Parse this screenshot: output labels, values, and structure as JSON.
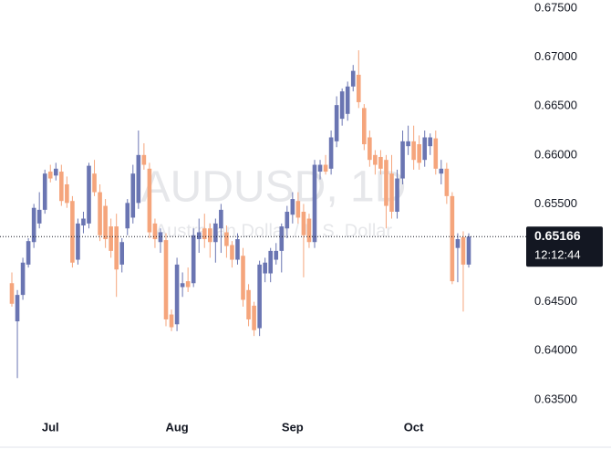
{
  "chart_data": {
    "type": "candlestick",
    "title": "AUDUSD, 1D",
    "subtitle": "Australian Dollar / U.S. Dollar",
    "up_color": "#6a75b2",
    "down_color": "#f5a57c",
    "ylim": [
      0.6334,
      0.67584
    ],
    "yticks": [
      {
        "value": 0.635,
        "label": "0.63500"
      },
      {
        "value": 0.64,
        "label": "0.64000"
      },
      {
        "value": 0.645,
        "label": "0.64500"
      },
      {
        "value": 0.65,
        "label": "0.65000"
      },
      {
        "value": 0.655,
        "label": "0.65500"
      },
      {
        "value": 0.66,
        "label": "0.66000"
      },
      {
        "value": 0.665,
        "label": "0.66500"
      },
      {
        "value": 0.67,
        "label": "0.67000"
      },
      {
        "value": 0.675,
        "label": "0.67500"
      }
    ],
    "xticks": [
      {
        "value": 7,
        "label": "Jul"
      },
      {
        "value": 30,
        "label": "Aug"
      },
      {
        "value": 51,
        "label": "Sep"
      },
      {
        "value": 73,
        "label": "Oct"
      }
    ],
    "last_price": {
      "value": 0.65166,
      "label": "0.65166"
    },
    "countdown": "12:12:44",
    "ohlc": [
      [
        0.6469,
        0.648,
        0.6445,
        0.6448
      ],
      [
        0.643,
        0.6462,
        0.6372,
        0.6457
      ],
      [
        0.6457,
        0.6495,
        0.6452,
        0.649
      ],
      [
        0.6488,
        0.6515,
        0.6485,
        0.6512
      ],
      [
        0.6511,
        0.655,
        0.6505,
        0.6546
      ],
      [
        0.653,
        0.6562,
        0.6525,
        0.6544
      ],
      [
        0.6544,
        0.6585,
        0.654,
        0.6581
      ],
      [
        0.6583,
        0.659,
        0.6572,
        0.6576
      ],
      [
        0.6579,
        0.6592,
        0.6574,
        0.6586
      ],
      [
        0.6583,
        0.659,
        0.6548,
        0.6553
      ],
      [
        0.657,
        0.6578,
        0.6546,
        0.6551
      ],
      [
        0.6553,
        0.6558,
        0.6485,
        0.649
      ],
      [
        0.6493,
        0.6535,
        0.6488,
        0.653
      ],
      [
        0.6528,
        0.6542,
        0.652,
        0.6535
      ],
      [
        0.653,
        0.6592,
        0.6525,
        0.6589
      ],
      [
        0.6581,
        0.6595,
        0.6558,
        0.6562
      ],
      [
        0.6562,
        0.657,
        0.6512,
        0.6518
      ],
      [
        0.6548,
        0.6555,
        0.6505,
        0.6514
      ],
      [
        0.6527,
        0.6535,
        0.6495,
        0.6502
      ],
      [
        0.6527,
        0.654,
        0.6455,
        0.6483
      ],
      [
        0.6488,
        0.6515,
        0.648,
        0.6511
      ],
      [
        0.6525,
        0.6555,
        0.6518,
        0.6551
      ],
      [
        0.6536,
        0.659,
        0.653,
        0.6581
      ],
      [
        0.6551,
        0.6625,
        0.6545,
        0.66
      ],
      [
        0.66,
        0.6612,
        0.6585,
        0.659
      ],
      [
        0.6586,
        0.6592,
        0.6515,
        0.6521
      ],
      [
        0.653,
        0.6535,
        0.6505,
        0.6514
      ],
      [
        0.6511,
        0.6525,
        0.65,
        0.6521
      ],
      [
        0.6513,
        0.652,
        0.6425,
        0.6432
      ],
      [
        0.6437,
        0.6442,
        0.642,
        0.6424
      ],
      [
        0.6427,
        0.6495,
        0.642,
        0.6488
      ],
      [
        0.6465,
        0.648,
        0.6455,
        0.6469
      ],
      [
        0.6471,
        0.6485,
        0.646,
        0.6465
      ],
      [
        0.6469,
        0.6525,
        0.6465,
        0.6518
      ],
      [
        0.6514,
        0.6535,
        0.65,
        0.6521
      ],
      [
        0.6525,
        0.654,
        0.6505,
        0.6514
      ],
      [
        0.6525,
        0.653,
        0.6495,
        0.6511
      ],
      [
        0.6511,
        0.6535,
        0.649,
        0.653
      ],
      [
        0.6525,
        0.655,
        0.65,
        0.6544
      ],
      [
        0.6521,
        0.6528,
        0.6495,
        0.6507
      ],
      [
        0.6508,
        0.6512,
        0.6485,
        0.6493
      ],
      [
        0.6493,
        0.652,
        0.6488,
        0.6514
      ],
      [
        0.6497,
        0.6505,
        0.6445,
        0.6452
      ],
      [
        0.6462,
        0.6468,
        0.6425,
        0.6432
      ],
      [
        0.6446,
        0.645,
        0.6415,
        0.6421
      ],
      [
        0.6423,
        0.6492,
        0.6415,
        0.6488
      ],
      [
        0.6479,
        0.6495,
        0.647,
        0.649
      ],
      [
        0.6479,
        0.6505,
        0.647,
        0.6502
      ],
      [
        0.6493,
        0.651,
        0.6488,
        0.6502
      ],
      [
        0.6502,
        0.653,
        0.648,
        0.6527
      ],
      [
        0.6525,
        0.6548,
        0.6515,
        0.6542
      ],
      [
        0.6539,
        0.6562,
        0.653,
        0.6555
      ],
      [
        0.6553,
        0.6562,
        0.653,
        0.6536
      ],
      [
        0.6542,
        0.655,
        0.6475,
        0.6518
      ],
      [
        0.6535,
        0.654,
        0.6505,
        0.6511
      ],
      [
        0.6511,
        0.6595,
        0.6505,
        0.659
      ],
      [
        0.6583,
        0.6595,
        0.6575,
        0.659
      ],
      [
        0.659,
        0.66,
        0.658,
        0.6583
      ],
      [
        0.6586,
        0.6625,
        0.658,
        0.6618
      ],
      [
        0.6614,
        0.666,
        0.6608,
        0.6651
      ],
      [
        0.6637,
        0.6668,
        0.663,
        0.6665
      ],
      [
        0.6642,
        0.6675,
        0.6635,
        0.667
      ],
      [
        0.667,
        0.6692,
        0.6665,
        0.6686
      ],
      [
        0.6682,
        0.6707,
        0.6648,
        0.6654
      ],
      [
        0.6648,
        0.6652,
        0.6605,
        0.6611
      ],
      [
        0.6618,
        0.6625,
        0.6588,
        0.6595
      ],
      [
        0.66,
        0.6605,
        0.658,
        0.659
      ],
      [
        0.6598,
        0.6605,
        0.658,
        0.6586
      ],
      [
        0.6595,
        0.66,
        0.6525,
        0.6548
      ],
      [
        0.6581,
        0.66,
        0.6535,
        0.6542
      ],
      [
        0.6542,
        0.6585,
        0.6535,
        0.6576
      ],
      [
        0.6576,
        0.6625,
        0.657,
        0.6614
      ],
      [
        0.6609,
        0.663,
        0.66,
        0.6614
      ],
      [
        0.6614,
        0.663,
        0.6585,
        0.6595
      ],
      [
        0.6611,
        0.662,
        0.6585,
        0.6592
      ],
      [
        0.6595,
        0.6625,
        0.6588,
        0.6618
      ],
      [
        0.6609,
        0.6622,
        0.66,
        0.6618
      ],
      [
        0.6617,
        0.6625,
        0.658,
        0.6586
      ],
      [
        0.6581,
        0.6595,
        0.657,
        0.6586
      ],
      [
        0.6586,
        0.6592,
        0.655,
        0.6558
      ],
      [
        0.6558,
        0.6562,
        0.6468,
        0.6471
      ],
      [
        0.6505,
        0.652,
        0.647,
        0.6514
      ],
      [
        0.6516,
        0.6522,
        0.644,
        0.6488
      ],
      [
        0.6488,
        0.652,
        0.6485,
        0.65166
      ]
    ]
  }
}
